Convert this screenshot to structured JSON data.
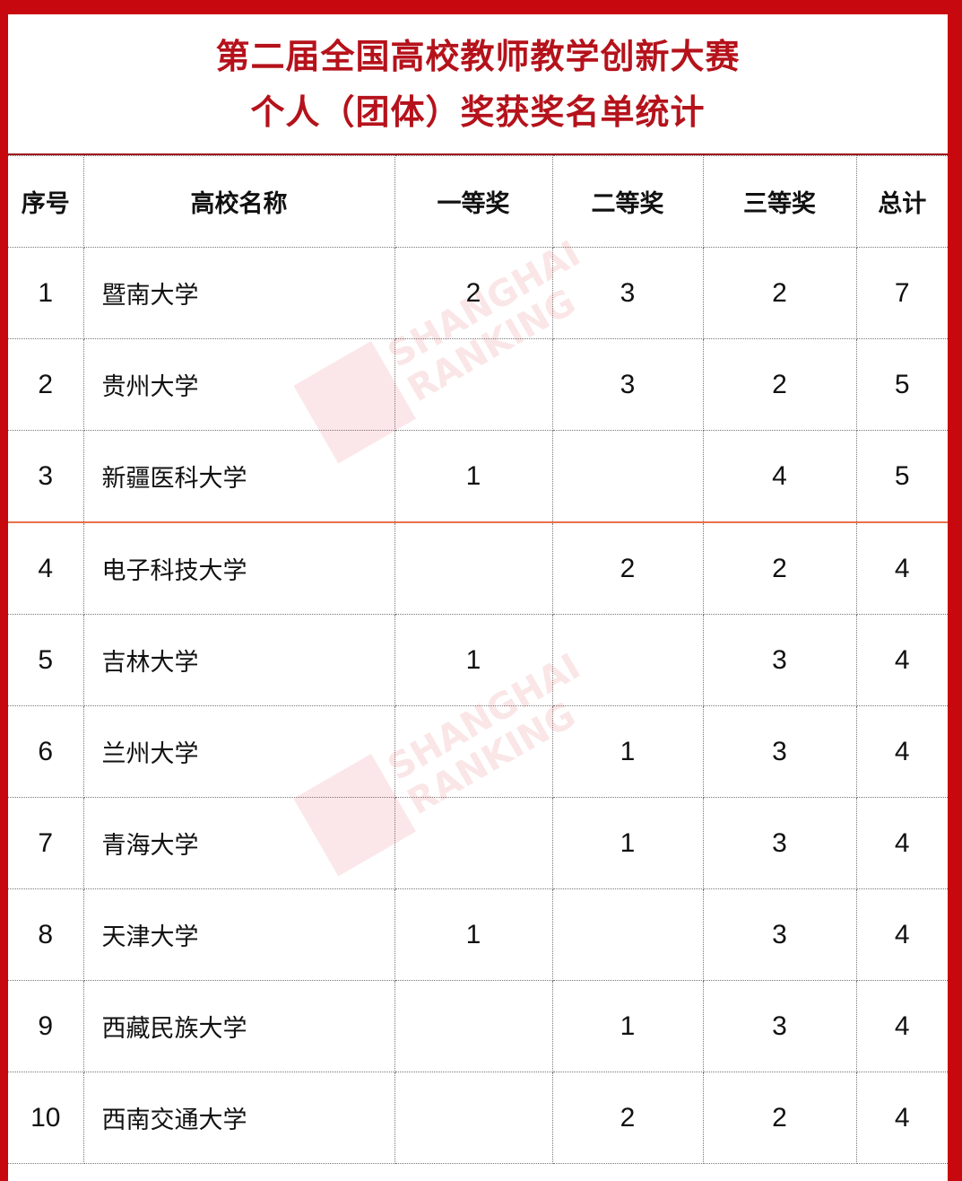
{
  "title": {
    "line1": "第二届全国高校教师教学创新大赛",
    "line2": "个人（团体）奖获奖名单统计"
  },
  "table": {
    "headers": [
      "序号",
      "高校名称",
      "一等奖",
      "二等奖",
      "三等奖",
      "总计"
    ],
    "rows": [
      [
        "1",
        "暨南大学",
        "2",
        "3",
        "2",
        "7"
      ],
      [
        "2",
        "贵州大学",
        "",
        "3",
        "2",
        "5"
      ],
      [
        "3",
        "新疆医科大学",
        "1",
        "",
        "4",
        "5"
      ],
      [
        "4",
        "电子科技大学",
        "",
        "2",
        "2",
        "4"
      ],
      [
        "5",
        "吉林大学",
        "1",
        "",
        "3",
        "4"
      ],
      [
        "6",
        "兰州大学",
        "",
        "1",
        "3",
        "4"
      ],
      [
        "7",
        "青海大学",
        "",
        "1",
        "3",
        "4"
      ],
      [
        "8",
        "天津大学",
        "1",
        "",
        "3",
        "4"
      ],
      [
        "9",
        "西藏民族大学",
        "",
        "1",
        "3",
        "4"
      ],
      [
        "10",
        "西南交通大学",
        "",
        "2",
        "2",
        "4"
      ]
    ]
  },
  "watermark": {
    "line1": "SHANGHAI",
    "line2": "RANKING"
  },
  "colors": {
    "frame": "#c8080f",
    "title": "#b5121b",
    "separator": "#e8704a"
  }
}
